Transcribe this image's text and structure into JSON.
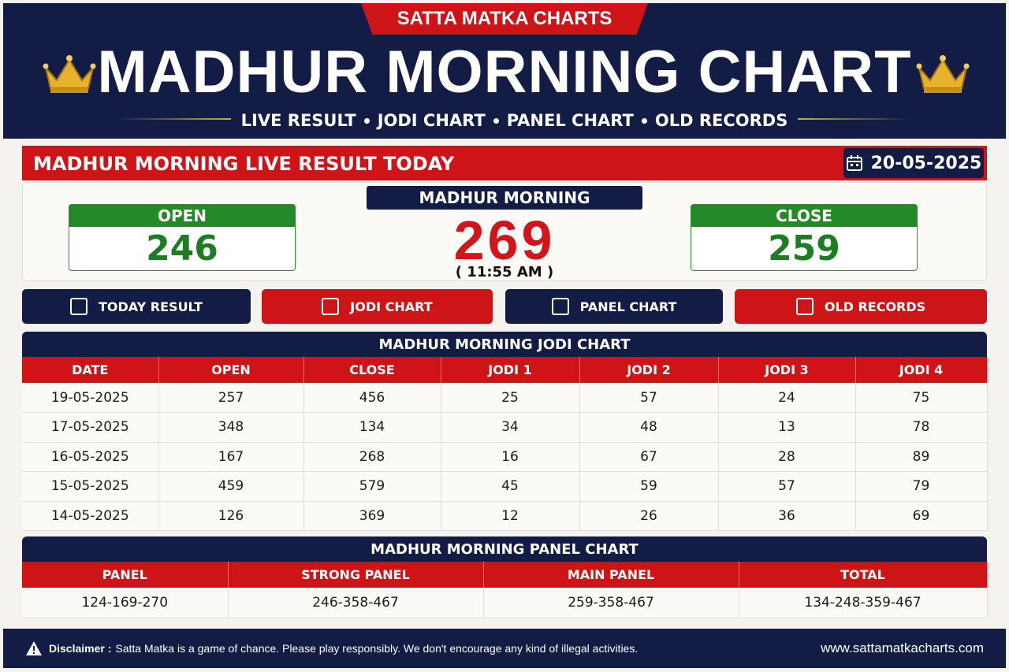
{
  "header": {
    "tab": "SATTA MATKA CHARTS",
    "title": "MADHUR MORNING CHART",
    "nav": [
      "LIVE RESULT",
      "JODI CHART",
      "PANEL CHART",
      "OLD RECORDS"
    ]
  },
  "live": {
    "heading": "MADHUR MORNING LIVE RESULT TODAY",
    "date": "20-05-2025",
    "market": "MADHUR MORNING",
    "result": 269,
    "time": "( 11:55 AM )",
    "open": {
      "label": "OPEN",
      "value": 246
    },
    "close": {
      "label": "CLOSE",
      "value": 259
    }
  },
  "buttons": [
    "TODAY RESULT",
    "JODI CHART",
    "PANEL CHART",
    "OLD RECORDS"
  ],
  "jodi_table": {
    "title": "MADHUR MORNING JODI CHART",
    "columns": [
      "DATE",
      "OPEN",
      "CLOSE",
      "JODI 1",
      "JODI 2",
      "JODI 3",
      "JODI 4"
    ],
    "rows": [
      [
        "19-05-2025",
        257,
        456,
        25,
        57,
        24,
        75
      ],
      [
        "17-05-2025",
        348,
        134,
        34,
        48,
        13,
        78
      ],
      [
        "16-05-2025",
        167,
        268,
        16,
        67,
        28,
        89
      ],
      [
        "15-05-2025",
        459,
        579,
        45,
        59,
        57,
        79
      ],
      [
        "14-05-2025",
        126,
        369,
        12,
        26,
        36,
        69
      ]
    ]
  },
  "panel_table": {
    "title": "MADHUR MORNING PANEL CHART",
    "columns": [
      "PANEL",
      "STRONG PANEL",
      "MAIN PANEL",
      "TOTAL"
    ],
    "rows": [
      [
        "124-169-270",
        "246-358-467",
        "259-358-467",
        "134-248-359-467"
      ]
    ]
  },
  "footer": {
    "disclaimer_label": "Disclaimer :",
    "disclaimer": "Satta Matka is a game of chance. Please play responsibly. We don't encourage any kind of illegal activities.",
    "site": "www.sattamatkacharts.com"
  }
}
